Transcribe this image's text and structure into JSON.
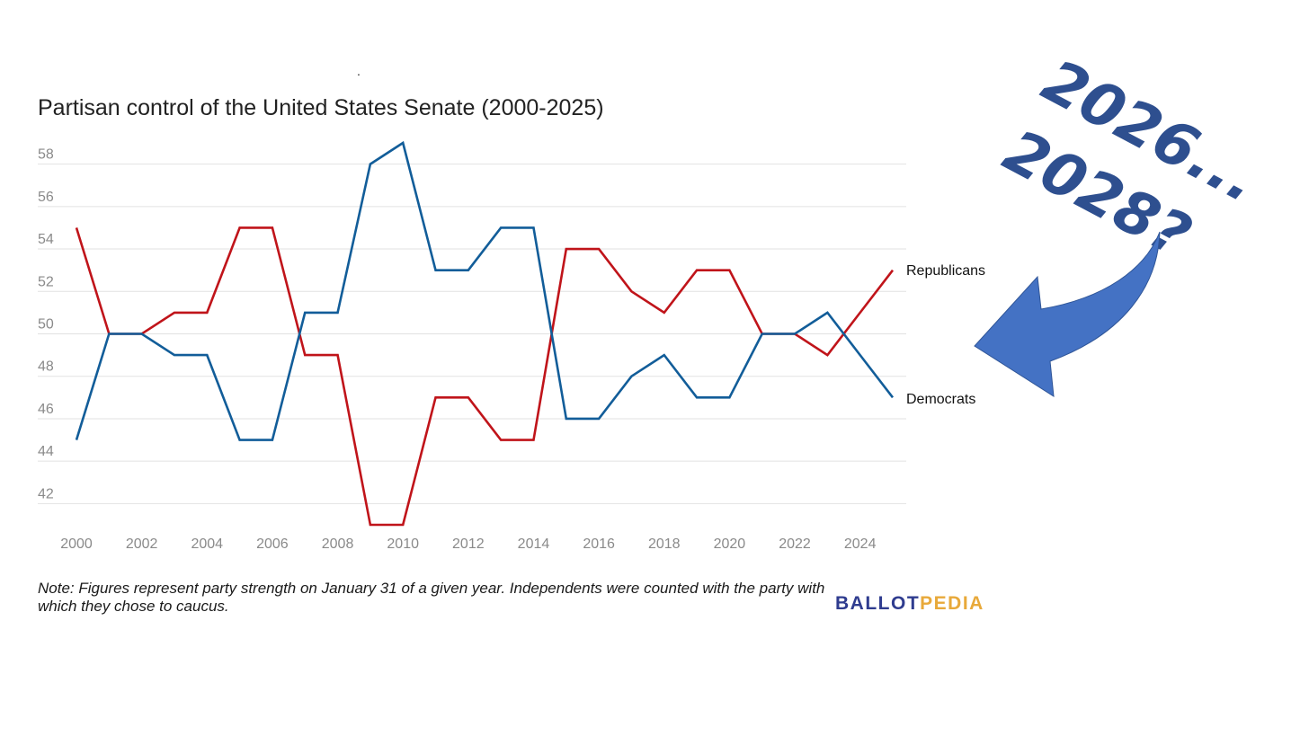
{
  "chart_data": {
    "type": "line",
    "title": "Partisan control of the United States Senate (2000-2025)",
    "x": [
      2000,
      2001,
      2002,
      2003,
      2004,
      2005,
      2006,
      2007,
      2008,
      2009,
      2010,
      2011,
      2012,
      2013,
      2014,
      2015,
      2016,
      2017,
      2018,
      2019,
      2020,
      2021,
      2022,
      2023,
      2024,
      2025
    ],
    "xlim": [
      2000,
      2025
    ],
    "x_ticks": [
      "2000",
      "2002",
      "2004",
      "2006",
      "2008",
      "2010",
      "2012",
      "2014",
      "2016",
      "2018",
      "2020",
      "2022",
      "2024"
    ],
    "ylim": [
      41,
      59
    ],
    "y_ticks": [
      "42",
      "44",
      "46",
      "48",
      "50",
      "52",
      "54",
      "56",
      "58"
    ],
    "grid": true,
    "legend": "end-of-line labels",
    "series": [
      {
        "name": "Republicans",
        "color": "#c0141a",
        "values": [
          55,
          50,
          50,
          51,
          51,
          55,
          55,
          49,
          49,
          41,
          41,
          47,
          47,
          45,
          45,
          54,
          54,
          52,
          51,
          53,
          53,
          50,
          50,
          49,
          51,
          53
        ]
      },
      {
        "name": "Democrats",
        "color": "#125d99",
        "values": [
          45,
          50,
          50,
          49,
          49,
          45,
          45,
          51,
          51,
          58,
          59,
          53,
          53,
          55,
          55,
          46,
          46,
          48,
          49,
          47,
          47,
          50,
          50,
          51,
          49,
          47
        ]
      }
    ],
    "note": "Note: Figures represent party strength on January 31 of a given year. Independents were counted with the party with which they chose to caucus."
  },
  "overlay": {
    "line1": "2026...",
    "line2": "2028?",
    "text_color": "#2e4f8f",
    "arrow_color": "#4472c4"
  },
  "logo": {
    "part1": "BALLOT",
    "part2": "PEDIA",
    "color1": "#2f3c8f",
    "color2": "#e8a93a"
  },
  "stray_mark": "."
}
